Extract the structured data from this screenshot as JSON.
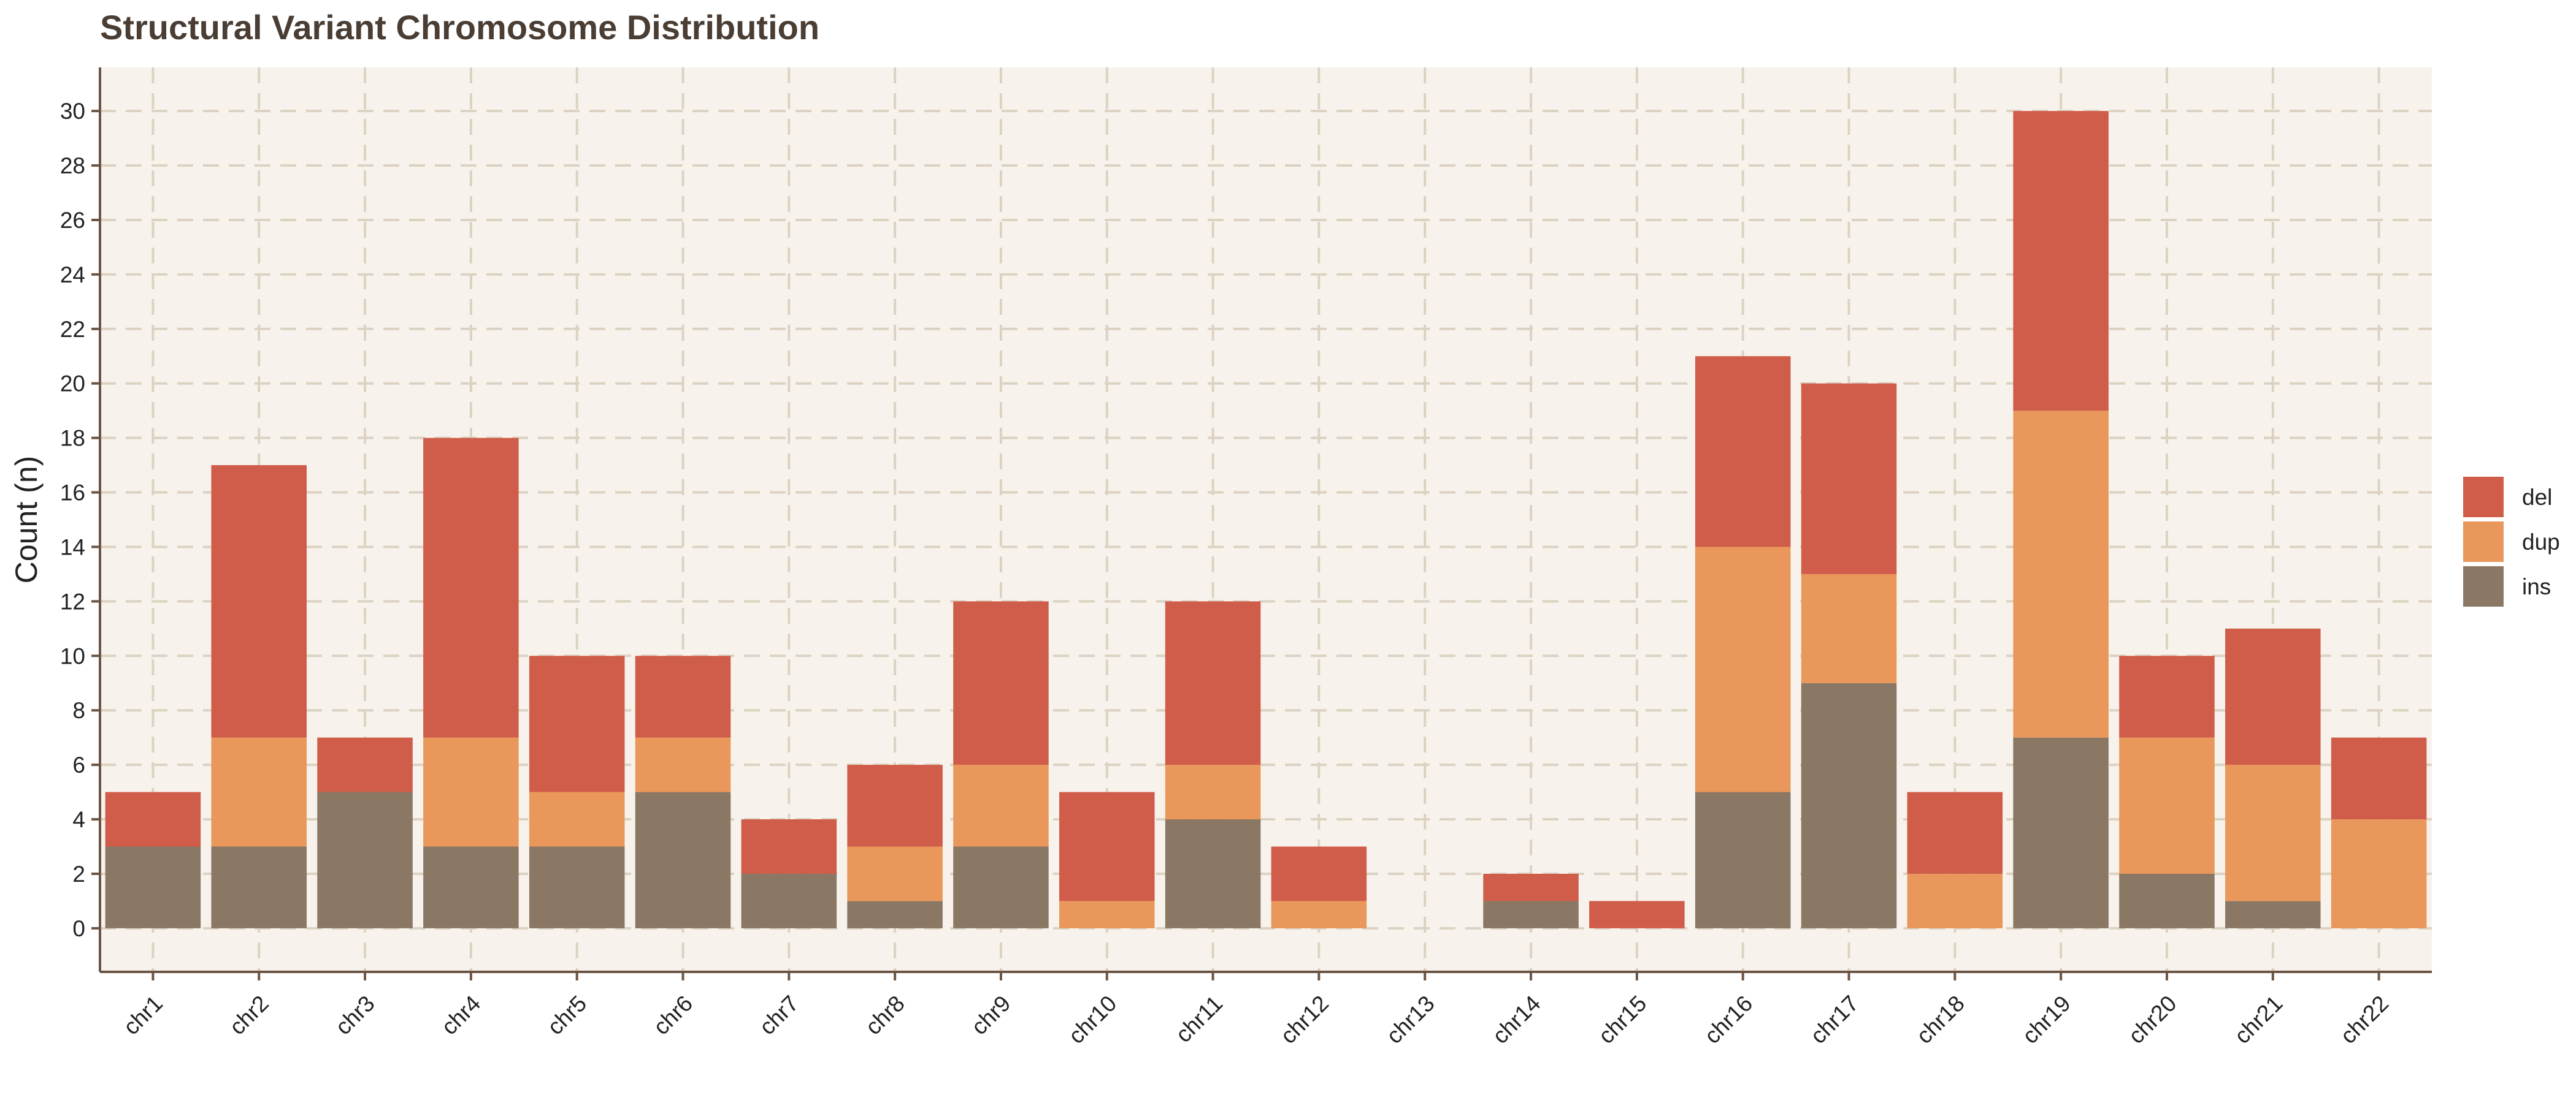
{
  "chart_data": {
    "type": "bar",
    "stacked": true,
    "title": "Structural Variant Chromosome Distribution",
    "xlabel": "",
    "ylabel": "Count (n)",
    "ylim": [
      -1.6,
      31.6
    ],
    "yticks": [
      0,
      2,
      4,
      6,
      8,
      10,
      12,
      14,
      16,
      18,
      20,
      22,
      24,
      26,
      28,
      30
    ],
    "grid": true,
    "legend_position": "right",
    "categories": [
      "chr1",
      "chr2",
      "chr3",
      "chr4",
      "chr5",
      "chr6",
      "chr7",
      "chr8",
      "chr9",
      "chr10",
      "chr11",
      "chr12",
      "chr13",
      "chr14",
      "chr15",
      "chr16",
      "chr17",
      "chr18",
      "chr19",
      "chr20",
      "chr21",
      "chr22"
    ],
    "series": [
      {
        "name": "ins",
        "color": "#8a7764",
        "values": [
          3,
          3,
          5,
          3,
          3,
          5,
          2,
          1,
          3,
          0,
          4,
          0,
          0,
          1,
          0,
          5,
          9,
          0,
          7,
          2,
          1,
          0
        ]
      },
      {
        "name": "dup",
        "color": "#e9975a",
        "values": [
          0,
          4,
          0,
          4,
          2,
          2,
          0,
          2,
          3,
          1,
          2,
          1,
          0,
          0,
          0,
          9,
          4,
          2,
          12,
          5,
          5,
          4
        ]
      },
      {
        "name": "del",
        "color": "#d05c4a",
        "values": [
          2,
          10,
          2,
          11,
          5,
          3,
          2,
          3,
          6,
          4,
          6,
          2,
          0,
          1,
          1,
          7,
          7,
          3,
          11,
          3,
          5,
          3
        ]
      }
    ],
    "legend_order": [
      "del",
      "dup",
      "ins"
    ],
    "colors": {
      "background": "#f7f3ec",
      "grid": "#dcd2c2",
      "axis": "#6b5444"
    }
  }
}
